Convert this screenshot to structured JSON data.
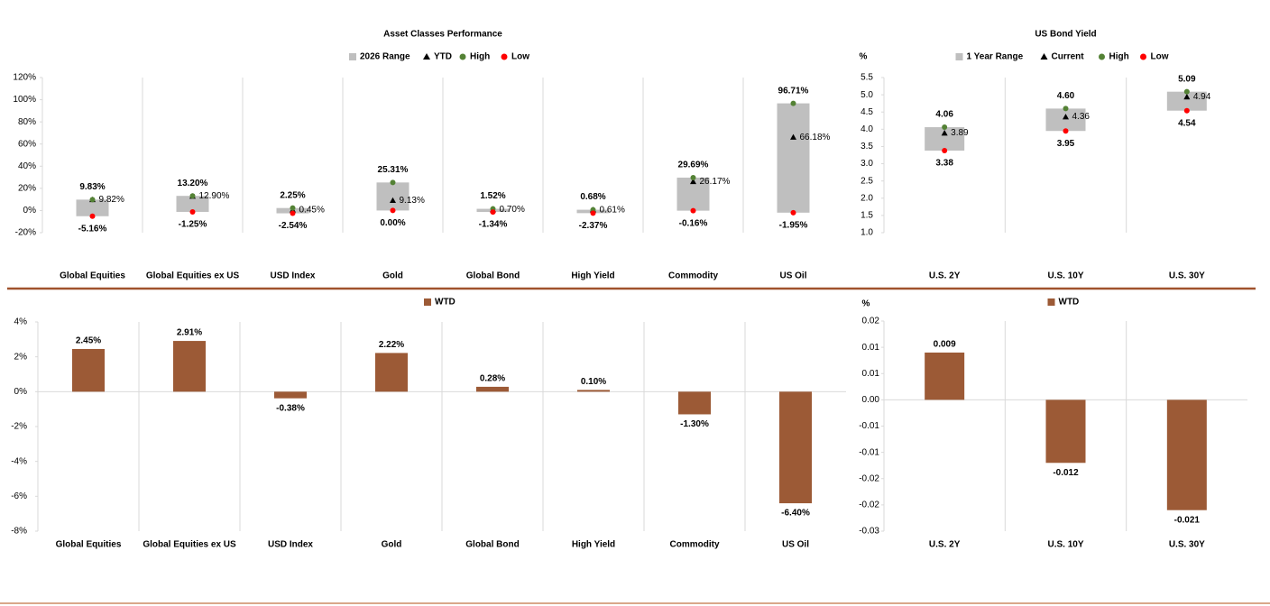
{
  "chart_data": [
    {
      "type": "range",
      "title": "Asset Classes Performance",
      "categories": [
        "Global Equities",
        "Global Equities ex US",
        "USD Index",
        "Gold",
        "Global Bond",
        "High Yield",
        "Commodity",
        "US Oil"
      ],
      "series": [
        {
          "name": "2026 Range",
          "color": "#bfbfbf",
          "marker": "square"
        },
        {
          "name": "YTD",
          "color": "#000000",
          "marker": "triangle",
          "values": [
            9.82,
            12.9,
            0.45,
            9.13,
            0.7,
            0.61,
            26.17,
            66.18
          ],
          "value_labels": [
            "9.82%",
            "12.90%",
            "0.45%",
            "9.13%",
            "0.70%",
            "0.61%",
            "26.17%",
            "66.18%"
          ]
        },
        {
          "name": "High",
          "color": "#548235",
          "marker": "circle",
          "values": [
            9.83,
            13.2,
            2.25,
            25.31,
            1.52,
            0.68,
            29.69,
            96.71
          ],
          "value_labels": [
            "9.83%",
            "13.20%",
            "2.25%",
            "25.31%",
            "1.52%",
            "0.68%",
            "29.69%",
            "96.71%"
          ]
        },
        {
          "name": "Low",
          "color": "#ff0000",
          "marker": "circle",
          "values": [
            -5.16,
            -1.25,
            -2.54,
            0.0,
            -1.34,
            -2.37,
            -0.16,
            -1.95
          ],
          "value_labels": [
            "-5.16%",
            "-1.25%",
            "-2.54%",
            "0.00%",
            "-1.34%",
            "-2.37%",
            "-0.16%",
            "-1.95%"
          ]
        }
      ],
      "ylim": [
        -20,
        120
      ],
      "yticks": [
        {
          "value": -20,
          "label": "-20%"
        },
        {
          "value": 0,
          "label": "0%"
        },
        {
          "value": 20,
          "label": "20%"
        },
        {
          "value": 40,
          "label": "40%"
        },
        {
          "value": 60,
          "label": "60%"
        },
        {
          "value": 80,
          "label": "80%"
        },
        {
          "value": 100,
          "label": "100%"
        },
        {
          "value": 120,
          "label": "120%"
        }
      ],
      "grid": true
    },
    {
      "type": "range",
      "title": "US Bond Yield",
      "y_unit": "%",
      "categories": [
        "U.S. 2Y",
        "U.S. 10Y",
        "U.S. 30Y"
      ],
      "series": [
        {
          "name": "1 Year Range",
          "color": "#bfbfbf",
          "marker": "square"
        },
        {
          "name": "Current",
          "color": "#000000",
          "marker": "triangle",
          "values": [
            3.89,
            4.36,
            4.94
          ],
          "value_labels": [
            "3.89",
            "4.36",
            "4.94"
          ]
        },
        {
          "name": "High",
          "color": "#548235",
          "marker": "circle",
          "values": [
            4.06,
            4.6,
            5.09
          ],
          "value_labels": [
            "4.06",
            "4.60",
            "5.09"
          ]
        },
        {
          "name": "Low",
          "color": "#ff0000",
          "marker": "circle",
          "values": [
            3.38,
            3.95,
            4.54
          ],
          "value_labels": [
            "3.38",
            "3.95",
            "4.54"
          ]
        }
      ],
      "ylim": [
        1.0,
        5.5
      ],
      "yticks": [
        {
          "value": 1.0,
          "label": "1.0"
        },
        {
          "value": 1.5,
          "label": "1.5"
        },
        {
          "value": 2.0,
          "label": "2.0"
        },
        {
          "value": 2.5,
          "label": "2.5"
        },
        {
          "value": 3.0,
          "label": "3.0"
        },
        {
          "value": 3.5,
          "label": "3.5"
        },
        {
          "value": 4.0,
          "label": "4.0"
        },
        {
          "value": 4.5,
          "label": "4.5"
        },
        {
          "value": 5.0,
          "label": "5.0"
        },
        {
          "value": 5.5,
          "label": "5.5"
        }
      ],
      "grid": true
    },
    {
      "type": "bar",
      "categories": [
        "Global Equities",
        "Global Equities ex US",
        "USD Index",
        "Gold",
        "Global Bond",
        "High Yield",
        "Commodity",
        "US Oil"
      ],
      "series": [
        {
          "name": "WTD",
          "color": "#9c5a36",
          "marker": "square",
          "values": [
            2.45,
            2.91,
            -0.38,
            2.22,
            0.28,
            0.1,
            -1.3,
            -6.4
          ],
          "value_labels": [
            "2.45%",
            "2.91%",
            "-0.38%",
            "2.22%",
            "0.28%",
            "0.10%",
            "-1.30%",
            "-6.40%"
          ]
        }
      ],
      "ylim": [
        -8,
        4
      ],
      "yticks": [
        {
          "value": -8,
          "label": "-8%"
        },
        {
          "value": -6,
          "label": "-6%"
        },
        {
          "value": -4,
          "label": "-4%"
        },
        {
          "value": -2,
          "label": "-2%"
        },
        {
          "value": 0,
          "label": "0%"
        },
        {
          "value": 2,
          "label": "2%"
        },
        {
          "value": 4,
          "label": "4%"
        }
      ],
      "grid": true
    },
    {
      "type": "bar",
      "y_unit": "%",
      "categories": [
        "U.S. 2Y",
        "U.S. 10Y",
        "U.S. 30Y"
      ],
      "series": [
        {
          "name": "WTD",
          "color": "#9c5a36",
          "marker": "square",
          "values": [
            0.009,
            -0.012,
            -0.021
          ]
        }
      ],
      "ylim": [
        -0.025,
        0.015
      ],
      "yticks": [
        {
          "value": -0.025,
          "label": "-0.03"
        },
        {
          "value": -0.02,
          "label": "-0.02"
        },
        {
          "value": -0.015,
          "label": "-0.02"
        },
        {
          "value": -0.01,
          "label": "-0.01"
        },
        {
          "value": -0.005,
          "label": "-0.01"
        },
        {
          "value": 0,
          "label": "0.00"
        },
        {
          "value": 0.005,
          "label": "0.01"
        },
        {
          "value": 0.01,
          "label": "0.01"
        },
        {
          "value": 0.015,
          "label": "0.02"
        }
      ],
      "grid": true
    }
  ]
}
